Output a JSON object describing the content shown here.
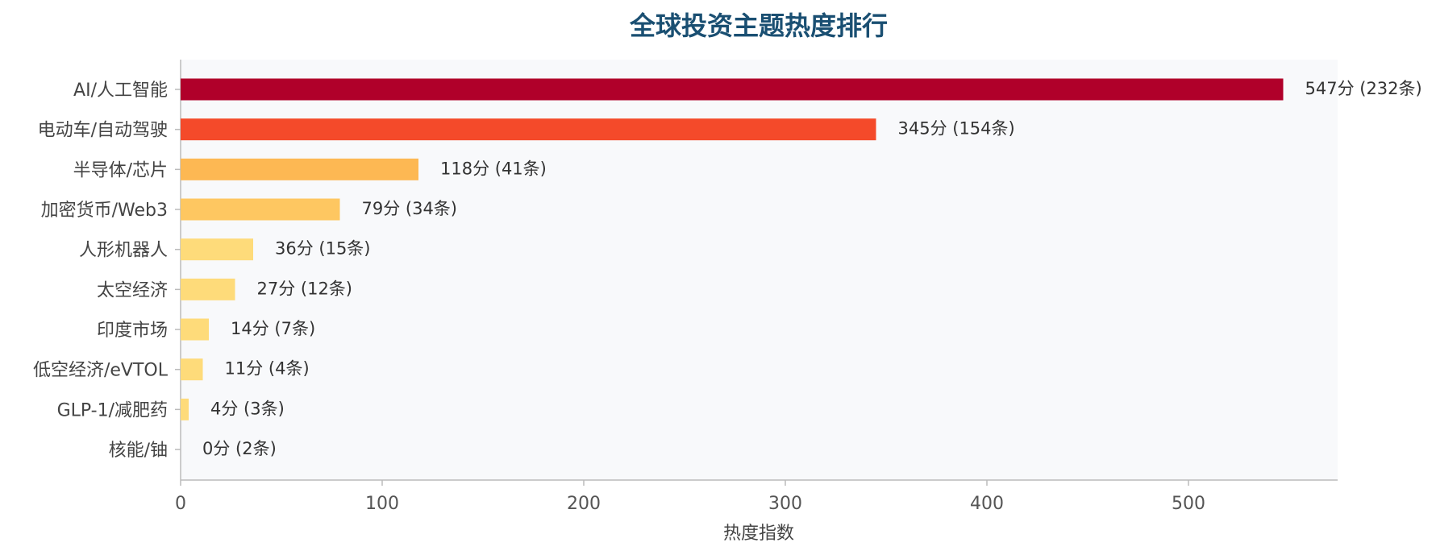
{
  "chart_data": {
    "type": "barh",
    "title": "全球投资主题热度排行",
    "xlabel": "热度指数",
    "categories": [
      "AI/人工智能",
      "电动车/自动驾驶",
      "半导体/芯片",
      "加密货币/Web3",
      "人形机器人",
      "太空经济",
      "印度市场",
      "低空经济/eVTOL",
      "GLP-1/减肥药",
      "核能/铀"
    ],
    "values": [
      547,
      345,
      118,
      79,
      36,
      27,
      14,
      11,
      4,
      0
    ],
    "value_labels": [
      "547分 (232条)",
      "345分 (154条)",
      "118分 (41条)",
      "79分 (34条)",
      "36分 (15条)",
      "27分 (12条)",
      "14分 (7条)",
      "11分 (4条)",
      "4分 (3条)",
      "0分 (2条)"
    ],
    "colors": [
      "#b0002a",
      "#f44a2a",
      "#fdb853",
      "#fec761",
      "#fedb7a",
      "#fedb7a",
      "#fedb7a",
      "#fedb7a",
      "#fedb7a",
      "#fedb7a"
    ],
    "xlim": [
      0,
      574
    ],
    "xticks": [
      0,
      100,
      200,
      300,
      400,
      500
    ]
  }
}
